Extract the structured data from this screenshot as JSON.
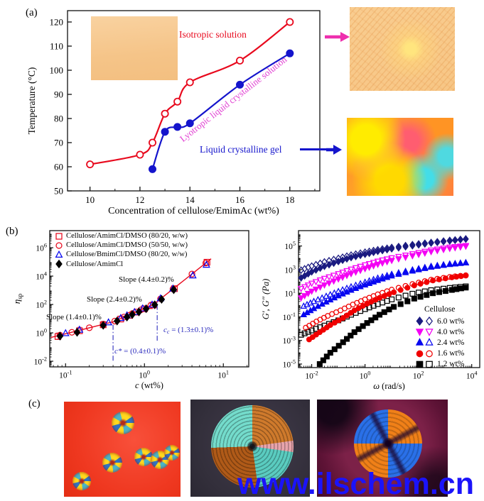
{
  "watermark": {
    "text": "www.ilschem.cn",
    "color": "#1b13fa"
  },
  "colors": {
    "red": "#e8091d",
    "blue": "#1414cc",
    "magenta_text": "#e13fd2",
    "magenta_arrow": "#ee2fae",
    "navy": "#1a1a80",
    "magenta": "#f400f4",
    "bright_blue": "#0808f0",
    "black": "#000000",
    "annotation_blue": "#2b2bbd"
  },
  "panels": {
    "a": {
      "label": "(a)",
      "annotations": {
        "isotropic": "Isotropic solution",
        "lyotropic": "Lyotropic liquid crystalline solution",
        "gel": "Liquid crystalline gel"
      }
    },
    "b": {
      "label": "(b)",
      "annotations": {
        "slope_high": "Slope (4.4±0.2)%",
        "slope_mid": "Slope (2.4±0.2)%",
        "slope_low": "Slope (1.4±0.1)%",
        "cc_pre": "c",
        "cc_sub": "c",
        "cc_rest": " = (1.3±0.1)%",
        "cstar_pre": "c*",
        "cstar_rest": " = (0.4±0.1)%"
      }
    },
    "c": {
      "label": "(c)"
    }
  },
  "chart_data": [
    {
      "id": "phase-diagram",
      "type": "line",
      "xlabel": "Concentration of cellulose/EmimAc (wt%)",
      "ylabel": "Temperature (°C)",
      "xlim": [
        9.1,
        19.2
      ],
      "ylim": [
        50,
        124.7
      ],
      "xticks": [
        10,
        12,
        14,
        16,
        18
      ],
      "yticks": [
        50,
        60,
        70,
        80,
        90,
        100,
        110,
        120
      ],
      "grid": false,
      "series": [
        {
          "name": "isotropic-boundary",
          "label": "Isotropic solution",
          "color": "#e8091d",
          "marker": "circle",
          "filled": false,
          "x": [
            10,
            12,
            12.5,
            13,
            13.5,
            14,
            16,
            18
          ],
          "y": [
            61,
            65,
            70,
            82,
            87,
            95,
            104,
            120
          ]
        },
        {
          "name": "gel-boundary",
          "label": "Liquid crystalline gel",
          "color": "#1414cc",
          "marker": "circle",
          "filled": true,
          "x": [
            12.5,
            13,
            13.5,
            14,
            16,
            18
          ],
          "y": [
            59,
            74.5,
            76.5,
            78,
            94,
            107
          ]
        }
      ]
    },
    {
      "id": "viscosity-scaling",
      "type": "scatter",
      "xscale": "log",
      "yscale": "log",
      "xlabel_it": "c",
      "xlabel_rest": " (wt%)",
      "ylabel_main": "η",
      "ylabel_sub": "sp",
      "xlim": [
        0.063,
        21
      ],
      "ylim": [
        0.004,
        16000000
      ],
      "xtick_exp": [
        -1,
        0,
        1
      ],
      "ytick_exp": [
        -2,
        0,
        2,
        4,
        6
      ],
      "fit_line": {
        "color": "#e8091d",
        "x": [
          0.065,
          0.4,
          1.3,
          7
        ],
        "y": [
          0.47,
          6,
          100,
          165000
        ]
      },
      "vlines": [
        {
          "x": 0.4,
          "y1": 0.011,
          "y2": 7,
          "color": "#2b2bbd"
        },
        {
          "x": 1.45,
          "y1": 0.28,
          "y2": 160,
          "color": "#2b2bbd"
        }
      ],
      "error_bars": [
        {
          "x": 0.08,
          "lo": 0.35,
          "hi": 1.0
        },
        {
          "x": 0.15,
          "lo": 0.9,
          "hi": 2.5
        },
        {
          "x": 0.3,
          "lo": 2.4,
          "hi": 6.6
        },
        {
          "x": 1.2,
          "lo": 50,
          "hi": 140
        }
      ],
      "series": [
        {
          "name": "amimcl-dmso-8020",
          "label": "Cellulose/AmimCl/DMSO (80/20, w/w)",
          "color": "#e8091d",
          "marker": "square",
          "filled": false,
          "x": [
            0.08,
            0.15,
            0.3,
            0.5,
            0.65,
            0.8,
            1.0,
            1.3,
            2.4,
            6.2
          ],
          "y": [
            0.55,
            1.4,
            3.7,
            9.4,
            17,
            29,
            50,
            92,
            1300,
            95000
          ]
        },
        {
          "name": "amimcl-dmso-5050",
          "label": "Cellulose/AmimCl/DMSO (50/50, w/w)",
          "color": "#e8091d",
          "marker": "circle",
          "filled": false,
          "x": [
            0.085,
            0.12,
            0.2,
            0.3,
            0.42,
            0.55,
            0.7,
            0.9,
            1.2,
            1.6,
            2.3,
            4.0,
            6.0
          ],
          "y": [
            0.69,
            1.1,
            2.3,
            4.0,
            6.7,
            13,
            23,
            42,
            84,
            250,
            1230,
            14000,
            84000
          ]
        },
        {
          "name": "bmimcl-dmso-8020",
          "label": "Cellulose/BmimCl/DMSO (80/20, w/w)",
          "color": "#0808f0",
          "marker": "triangle-up",
          "filled": false,
          "x": [
            0.1,
            0.15,
            0.35,
            0.5,
            0.6,
            0.75,
            0.95,
            1.25,
            1.6,
            2.3,
            4.1,
            6.1
          ],
          "y": [
            0.94,
            1.65,
            5.4,
            11,
            17,
            29,
            52,
            97,
            270,
            1300,
            11000,
            62000
          ]
        },
        {
          "name": "amimcl",
          "label": "Cellulose/AmimCl",
          "color": "#000000",
          "marker": "diamond",
          "filled": true,
          "x": [
            0.085,
            0.14,
            0.3,
            0.45,
            0.6,
            0.7,
            0.85,
            1.05,
            1.35,
            1.65,
            2.35
          ],
          "y": [
            0.59,
            1.1,
            3.4,
            6.8,
            13,
            19.5,
            30,
            50,
            95,
            230,
            1100
          ]
        }
      ]
    },
    {
      "id": "dynamic-moduli",
      "type": "scatter",
      "xscale": "log",
      "yscale": "log",
      "xlabel_it": "ω",
      "xlabel_rest": " (rad/s)",
      "ylabel_italic": "G′, G″ (Pa)",
      "xlim": [
        0.0032,
        20000
      ],
      "ylim": [
        5e-06,
        2000000
      ],
      "xtick_exp": [
        -2,
        0,
        2,
        4
      ],
      "ytick_exp": [
        -5,
        -3,
        -1,
        1,
        3,
        5
      ],
      "legend_title": "Cellulose",
      "groups": [
        {
          "label": "6.0 wt%",
          "color": "#1a1a80",
          "marker": "diamond",
          "gpp": {
            "x": [
              0.004,
              0.01,
              0.03,
              0.1,
              0.3,
              1,
              3,
              10,
              60,
              300,
              1500,
              6000
            ],
            "y": [
              900,
              2000,
              4500,
              9000,
              17000,
              30000,
              48000,
              75000,
              130000,
              200000,
              300000,
              400000
            ]
          },
          "gp": {
            "x": [
              0.004,
              0.01,
              0.03,
              0.1,
              0.3,
              1,
              3,
              10,
              60,
              300,
              1500,
              6000
            ],
            "y": [
              200,
              650,
              1900,
              4800,
              10500,
              20000,
              35000,
              58000,
              105000,
              175000,
              265000,
              380000
            ]
          }
        },
        {
          "label": "4.0 wt%",
          "color": "#f400f4",
          "marker": "triangle-down",
          "gpp": {
            "x": [
              0.004,
              0.01,
              0.03,
              0.1,
              0.3,
              1,
              3,
              10,
              60,
              300,
              1500,
              6000
            ],
            "y": [
              25,
              70,
              180,
              450,
              1100,
              2500,
              5200,
              10000,
              22000,
              45000,
              80000,
              110000
            ]
          },
          "gp": {
            "x": [
              0.004,
              0.01,
              0.03,
              0.1,
              0.3,
              1,
              3,
              10,
              60,
              300,
              1500,
              6000
            ],
            "y": [
              4,
              15,
              50,
              160,
              450,
              1200,
              2800,
              6000,
              15000,
              33000,
              62000,
              95000
            ]
          }
        },
        {
          "label": "2.4 wt%",
          "color": "#0808f0",
          "marker": "triangle-up",
          "gpp": {
            "x": [
              0.005,
              0.012,
              0.035,
              0.1,
              0.3,
              1,
              3,
              10,
              60,
              300,
              1500,
              6000
            ],
            "y": [
              0.8,
              2,
              5.5,
              14,
              35,
              85,
              190,
              400,
              950,
              1900,
              3000,
              3900
            ]
          },
          "gp": {
            "x": [
              0.005,
              0.012,
              0.035,
              0.1,
              0.3,
              1,
              3,
              10,
              60,
              300,
              1500,
              6000
            ],
            "y": [
              0.15,
              0.5,
              1.8,
              6,
              18,
              50,
              120,
              290,
              750,
              1600,
              2700,
              3700
            ]
          }
        },
        {
          "label": "1.6 wt%",
          "color": "#f00000",
          "marker": "circle",
          "gpp": {
            "x": [
              0.006,
              0.015,
              0.04,
              0.12,
              0.35,
              1,
              3,
              10,
              60,
              300,
              1500,
              6000
            ],
            "y": [
              0.012,
              0.04,
              0.12,
              0.35,
              1.1,
              3,
              8,
              20,
              60,
              140,
              240,
              330
            ]
          },
          "gp": {
            "x": [
              0.008,
              0.02,
              0.05,
              0.15,
              0.4,
              1.2,
              3.5,
              12,
              70,
              350,
              1800,
              6000
            ],
            "y": [
              0.0012,
              0.005,
              0.02,
              0.08,
              0.35,
              1.3,
              4,
              12,
              45,
              120,
              220,
              310
            ]
          }
        },
        {
          "label": "1.2 wt%",
          "color": "#000000",
          "marker": "square",
          "gpp": {
            "x": [
              0.004,
              0.01,
              0.03,
              0.1,
              0.3,
              1,
              3,
              10,
              60,
              300,
              1500,
              6000
            ],
            "y": [
              0.003,
              0.007,
              0.018,
              0.05,
              0.15,
              0.45,
              1.2,
              3,
              9,
              18,
              28,
              38
            ]
          },
          "gp": {
            "x": [
              0.02,
              0.05,
              0.15,
              0.4,
              1.2,
              3.5,
              12,
              70,
              350,
              1800,
              6000
            ],
            "y": [
              1e-05,
              9e-05,
              0.0007,
              0.005,
              0.03,
              0.15,
              0.7,
              3.5,
              10,
              19,
              30
            ]
          }
        }
      ]
    }
  ]
}
